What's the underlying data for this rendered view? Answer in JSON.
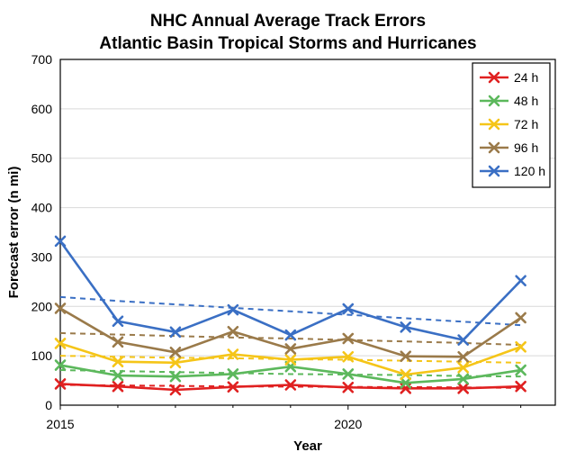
{
  "chart_data": {
    "type": "line",
    "title": "NHC Annual Average Track Errors",
    "subtitle": "Atlantic Basin Tropical Storms and Hurricanes",
    "xlabel": "Year",
    "ylabel": "Forecast error (n mi)",
    "xlim": [
      2015,
      2023.6
    ],
    "ylim": [
      0,
      700
    ],
    "xticks": [
      2015,
      2020
    ],
    "yticks": [
      0,
      100,
      200,
      300,
      400,
      500,
      600,
      700
    ],
    "x": [
      2015,
      2016,
      2017,
      2018,
      2019,
      2020,
      2021,
      2022,
      2023
    ],
    "grid": "horizontal",
    "legend_position": "top-right",
    "series": [
      {
        "name": "24 h",
        "color": "#e02020",
        "values": [
          43,
          38,
          31,
          37,
          41,
          36,
          34,
          34,
          38
        ],
        "trend": [
          41,
          40,
          39,
          38,
          37.5,
          37,
          36.5,
          36,
          35
        ]
      },
      {
        "name": "48 h",
        "color": "#5cb85c",
        "values": [
          81,
          60,
          58,
          63,
          78,
          63,
          45,
          53,
          71
        ],
        "trend": [
          71,
          69,
          67,
          65,
          63,
          62,
          61,
          59,
          58
        ]
      },
      {
        "name": "72 h",
        "color": "#f5c518",
        "values": [
          125,
          88,
          86,
          103,
          92,
          98,
          62,
          76,
          118
        ],
        "trend": [
          100,
          98,
          96,
          95,
          93,
          92,
          90,
          88,
          86
        ]
      },
      {
        "name": "96 h",
        "color": "#9a7a4a",
        "values": [
          196,
          128,
          107,
          149,
          114,
          135,
          99,
          98,
          177
        ],
        "trend": [
          146,
          143,
          140,
          137,
          135,
          132,
          129,
          126,
          122
        ]
      },
      {
        "name": "120 h",
        "color": "#3a6fc4",
        "values": [
          332,
          170,
          148,
          193,
          142,
          195,
          158,
          132,
          252
        ],
        "trend": [
          219,
          211,
          204,
          197,
          190,
          183,
          176,
          169,
          162
        ]
      }
    ]
  }
}
